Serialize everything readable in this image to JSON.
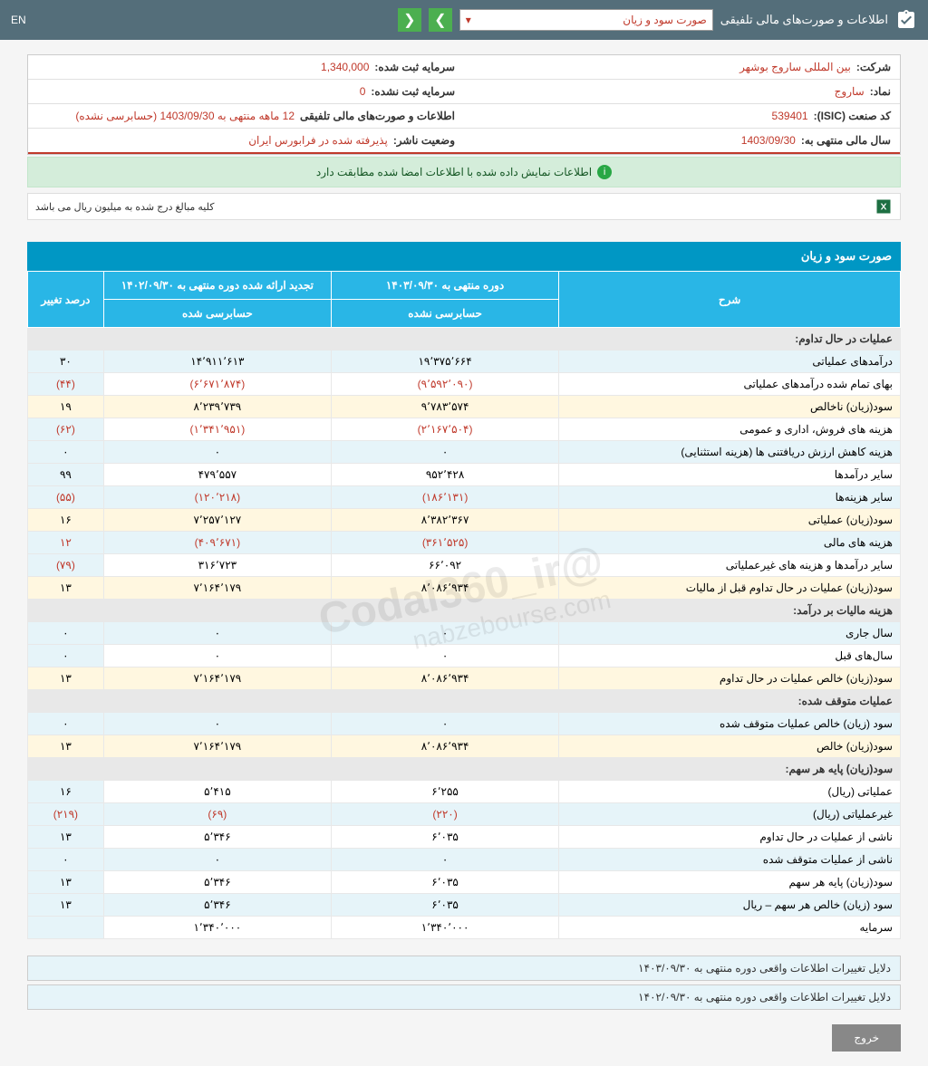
{
  "topbar": {
    "title": "اطلاعات و صورت‌های مالی تلفیقی",
    "dropdown": "صورت سود و زیان",
    "lang": "EN"
  },
  "info": {
    "company_label": "شرکت:",
    "company_value": "بین المللی ساروج بوشهر",
    "capital_reg_label": "سرمایه ثبت شده:",
    "capital_reg_value": "1,340,000",
    "symbol_label": "نماد:",
    "symbol_value": "ساروج",
    "capital_unreg_label": "سرمایه ثبت نشده:",
    "capital_unreg_value": "0",
    "isic_label": "کد صنعت (ISIC):",
    "isic_value": "539401",
    "statements_label": "اطلاعات و صورت‌های مالی تلفیقی",
    "statements_value": "12 ماهه منتهی به 1403/09/30 (حسابرسی نشده)",
    "fy_label": "سال مالی منتهی به:",
    "fy_value": "1403/09/30",
    "status_label": "وضعیت ناشر:",
    "status_value": "پذیرفته شده در فرابورس ایران"
  },
  "alert": "اطلاعات نمایش داده شده با اطلاعات امضا شده مطابقت دارد",
  "note": "کلیه مبالغ درج شده به میلیون ریال می باشد",
  "section_title": "صورت سود و زیان",
  "headers": {
    "desc": "شرح",
    "period1": "دوره منتهی به ۱۴۰۳/۰۹/۳۰",
    "period2": "تجدید ارائه شده دوره منتهی به ۱۴۰۲/۰۹/۳۰",
    "pct": "درصد تغییر",
    "sub1": "حسابرسی نشده",
    "sub2": "حسابرسی شده"
  },
  "rows": [
    {
      "type": "group",
      "desc": "عملیات در حال تداوم:"
    },
    {
      "type": "blue",
      "desc": "درآمدهای عملیاتی",
      "v1": "۱۹٬۳۷۵٬۶۶۴",
      "v2": "۱۴٬۹۱۱٬۶۱۳",
      "pct": "۳۰"
    },
    {
      "type": "",
      "desc": "بهای تمام شده درآمدهای عملیاتی",
      "v1": "(۹٬۵۹۲٬۰۹۰)",
      "v2": "(۶٬۶۷۱٬۸۷۴)",
      "pct": "(۴۴)",
      "neg": true
    },
    {
      "type": "yellow",
      "desc": "سود(زیان) ناخالص",
      "v1": "۹٬۷۸۳٬۵۷۴",
      "v2": "۸٬۲۳۹٬۷۳۹",
      "pct": "۱۹"
    },
    {
      "type": "",
      "desc": "هزینه های فروش، اداری و عمومی",
      "v1": "(۲٬۱۶۷٬۵۰۴)",
      "v2": "(۱٬۳۴۱٬۹۵۱)",
      "pct": "(۶۲)",
      "neg": true
    },
    {
      "type": "blue",
      "desc": "هزینه کاهش ارزش دریافتنی ها (هزینه استثنایی)",
      "v1": "۰",
      "v2": "۰",
      "pct": "۰"
    },
    {
      "type": "",
      "desc": "سایر درآمدها",
      "v1": "۹۵۲٬۴۲۸",
      "v2": "۴۷۹٬۵۵۷",
      "pct": "۹۹"
    },
    {
      "type": "blue",
      "desc": "سایر هزینه‌ها",
      "v1": "(۱۸۶٬۱۳۱)",
      "v2": "(۱۲۰٬۲۱۸)",
      "pct": "(۵۵)",
      "neg": true
    },
    {
      "type": "yellow",
      "desc": "سود(زیان) عملیاتی",
      "v1": "۸٬۳۸۲٬۳۶۷",
      "v2": "۷٬۲۵۷٬۱۲۷",
      "pct": "۱۶"
    },
    {
      "type": "blue",
      "desc": "هزینه های مالی",
      "v1": "(۳۶۱٬۵۲۵)",
      "v2": "(۴۰۹٬۶۷۱)",
      "pct": "۱۲",
      "neg": true
    },
    {
      "type": "",
      "desc": "سایر درآمدها و هزینه های غیرعملیاتی",
      "v1": "۶۶٬۰۹۲",
      "v2": "۳۱۶٬۷۲۳",
      "pct": "(۷۹)",
      "pctneg": true
    },
    {
      "type": "yellow",
      "desc": "سود(زیان) عملیات در حال تداوم قبل از مالیات",
      "v1": "۸٬۰۸۶٬۹۳۴",
      "v2": "۷٬۱۶۴٬۱۷۹",
      "pct": "۱۳"
    },
    {
      "type": "group",
      "desc": "هزینه مالیات بر درآمد:"
    },
    {
      "type": "blue",
      "desc": "سال جاری",
      "v1": "۰",
      "v2": "۰",
      "pct": "۰"
    },
    {
      "type": "",
      "desc": "سال‌های قبل",
      "v1": "۰",
      "v2": "۰",
      "pct": "۰"
    },
    {
      "type": "yellow",
      "desc": "سود(زیان) خالص عملیات در حال تداوم",
      "v1": "۸٬۰۸۶٬۹۳۴",
      "v2": "۷٬۱۶۴٬۱۷۹",
      "pct": "۱۳"
    },
    {
      "type": "group",
      "desc": "عملیات متوقف شده:"
    },
    {
      "type": "blue",
      "desc": "سود (زیان) خالص عملیات متوقف شده",
      "v1": "۰",
      "v2": "۰",
      "pct": "۰"
    },
    {
      "type": "yellow",
      "desc": "سود(زیان) خالص",
      "v1": "۸٬۰۸۶٬۹۳۴",
      "v2": "۷٬۱۶۴٬۱۷۹",
      "pct": "۱۳"
    },
    {
      "type": "group",
      "desc": "سود(زیان) پایه هر سهم:"
    },
    {
      "type": "",
      "desc": "عملیاتی (ریال)",
      "v1": "۶٬۲۵۵",
      "v2": "۵٬۴۱۵",
      "pct": "۱۶"
    },
    {
      "type": "blue",
      "desc": "غیرعملیاتی (ریال)",
      "v1": "(۲۲۰)",
      "v2": "(۶۹)",
      "pct": "(۲۱۹)",
      "neg": true
    },
    {
      "type": "",
      "desc": "ناشی از عملیات در حال تداوم",
      "v1": "۶٬۰۳۵",
      "v2": "۵٬۳۴۶",
      "pct": "۱۳"
    },
    {
      "type": "blue",
      "desc": "ناشی از عملیات متوقف شده",
      "v1": "۰",
      "v2": "۰",
      "pct": "۰"
    },
    {
      "type": "",
      "desc": "سود(زیان) پایه هر سهم",
      "v1": "۶٬۰۳۵",
      "v2": "۵٬۳۴۶",
      "pct": "۱۳"
    },
    {
      "type": "blue",
      "desc": "سود (زیان) خالص هر سهم – ریال",
      "v1": "۶٬۰۳۵",
      "v2": "۵٬۳۴۶",
      "pct": "۱۳"
    },
    {
      "type": "",
      "desc": "سرمایه",
      "v1": "۱٬۳۴۰٬۰۰۰",
      "v2": "۱٬۳۴۰٬۰۰۰",
      "pct": ""
    }
  ],
  "footer1": "دلایل تغییرات اطلاعات واقعی دوره منتهی به ۱۴۰۳/۰۹/۳۰",
  "footer2": "دلایل تغییرات اطلاعات واقعی دوره منتهی به ۱۴۰۲/۰۹/۳۰",
  "exit": "خروج",
  "watermark1": "@Codal360_ir",
  "watermark2": "nabzebourse.com"
}
